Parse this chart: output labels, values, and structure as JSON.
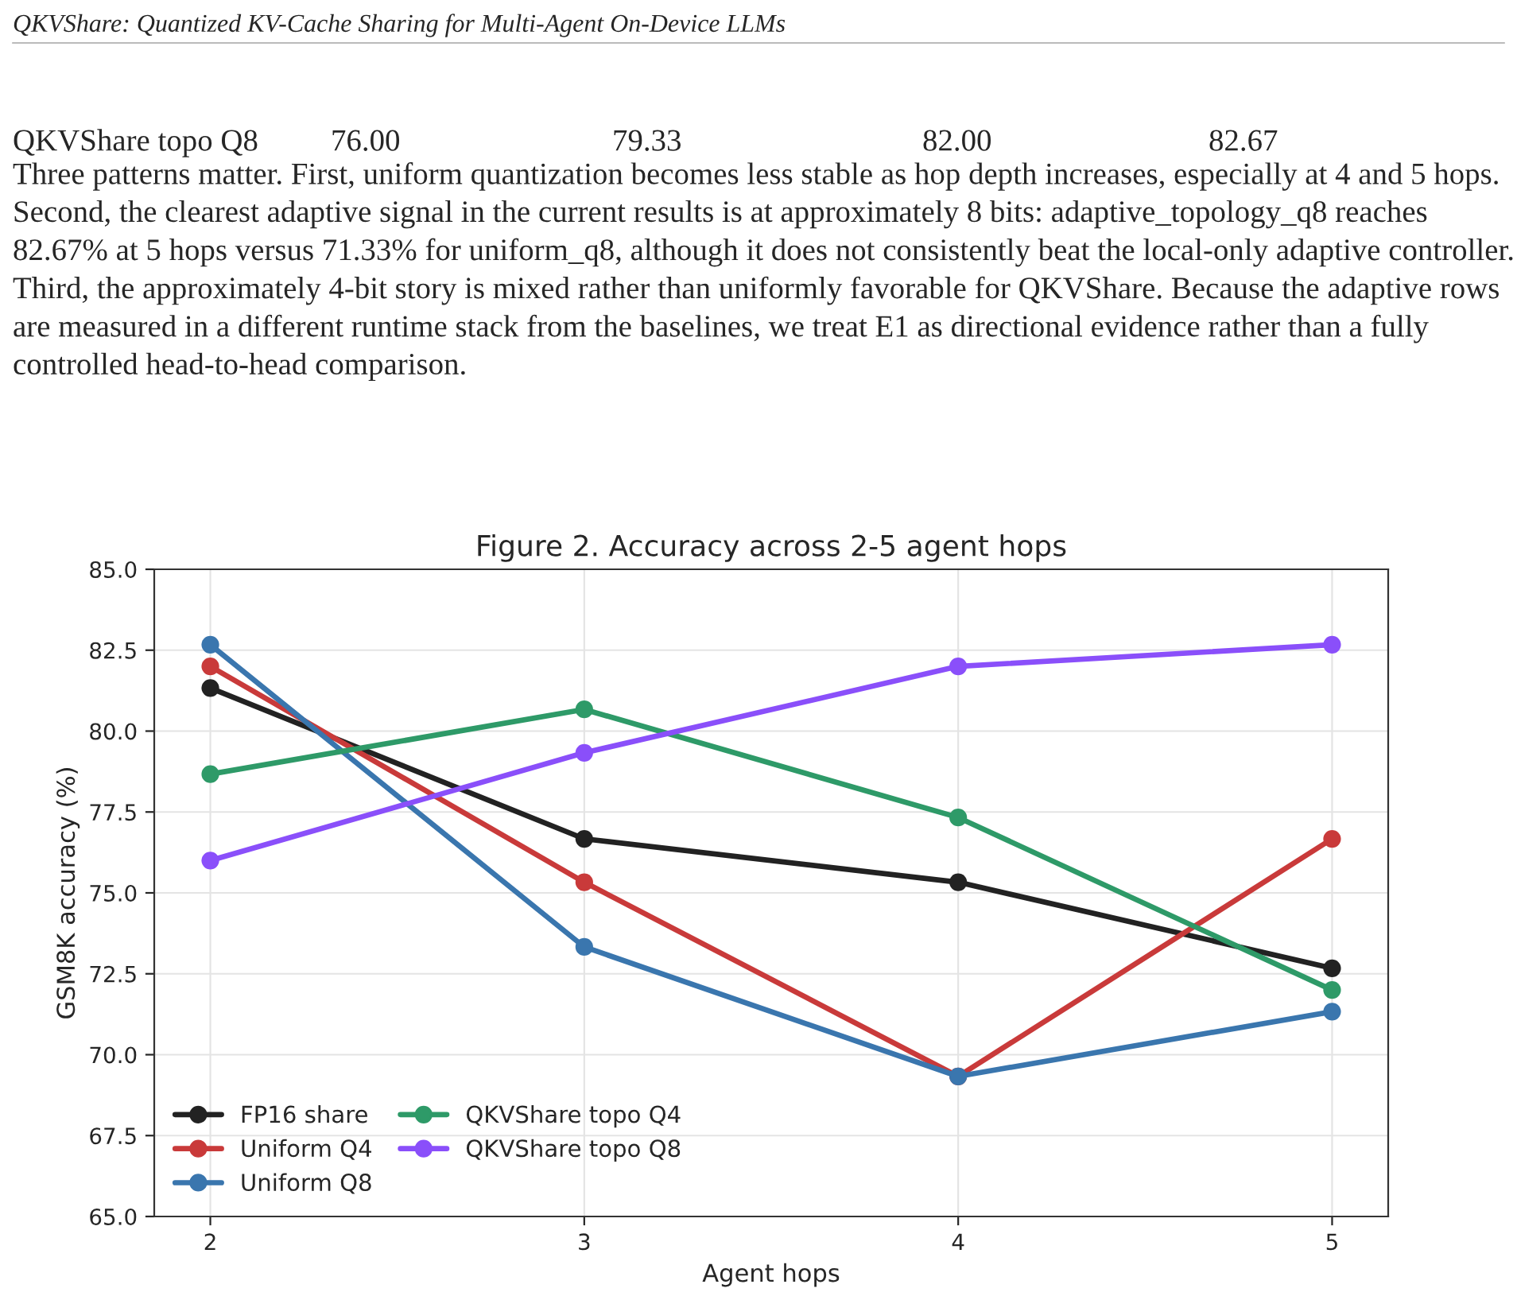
{
  "chart_data": {
    "type": "line",
    "title": "Figure 2. Accuracy across 2-5 agent hops",
    "xlabel": "Agent hops",
    "ylabel": "GSM8K accuracy (%)",
    "x": [
      2,
      3,
      4,
      5
    ],
    "xlim": [
      1.85,
      5.15
    ],
    "xticks": [
      2,
      3,
      4,
      5
    ],
    "ylim": [
      65,
      85
    ],
    "yticks": [
      {
        "value": 65,
        "label": "65.0"
      },
      {
        "value": 67.5,
        "label": "67.5"
      },
      {
        "value": 70,
        "label": "70.0"
      },
      {
        "value": 72.5,
        "label": "72.5"
      },
      {
        "value": 75,
        "label": "75.0"
      },
      {
        "value": 77.5,
        "label": "77.5"
      },
      {
        "value": 80,
        "label": "80.0"
      },
      {
        "value": 82.5,
        "label": "82.5"
      },
      {
        "value": 85,
        "label": "85.0"
      }
    ],
    "grid": true,
    "legend": "bottom left",
    "marker": "circle",
    "line_style": "solid",
    "series": [
      {
        "name": "FP16 share",
        "color": "#222222",
        "values": [
          81.33,
          76.67,
          75.33,
          72.67
        ]
      },
      {
        "name": "Uniform Q4",
        "color": "#c93a3a",
        "values": [
          82.0,
          75.33,
          69.33,
          76.67
        ]
      },
      {
        "name": "Uniform Q8",
        "color": "#3a76ae",
        "values": [
          82.67,
          73.33,
          69.33,
          71.33
        ]
      },
      {
        "name": "QKVShare topo Q4",
        "color": "#2e9a68",
        "values": [
          78.67,
          80.67,
          77.33,
          72.0
        ]
      },
      {
        "name": "QKVShare topo Q8",
        "color": "#8a4ffa",
        "values": [
          76.0,
          79.33,
          82.0,
          82.67
        ]
      }
    ],
    "annotations": [
      "QKVShare: Quantized KV-Cache Sharing for Multi-Agent On-Device LLMs",
      "QKVShare topo Q8",
      "76.00",
      "79.33",
      "82.00",
      "82.67",
      "Three patterns matter. First, uniform quantization becomes less stable as hop depth increases, especially at 4 and 5 hops. Second, the clearest adaptive signal in the current results is at approximately 8 bits: adaptive_topology_q8 reaches 82.67% at 5 hops versus 71.33% for uniform_q8, although it does not consistently beat the local-only adaptive controller. Third, the approximately 4-bit story is mixed rather than uniformly favorable for QKVShare. Because the adaptive rows are measured in a different runtime stack from the baselines, we treat E1 as directional evidence rather than a fully controlled head-to-head comparison."
    ]
  }
}
